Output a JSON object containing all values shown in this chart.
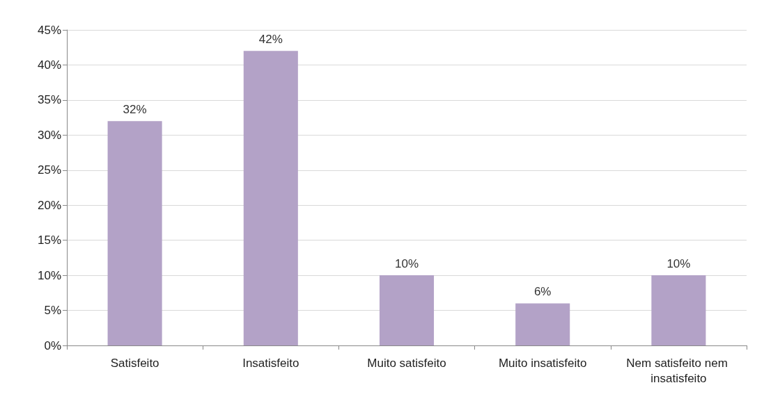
{
  "chart_data": {
    "type": "bar",
    "categories": [
      "Satisfeito",
      "Insatisfeito",
      "Muito satisfeito",
      "Muito insatisfeito",
      "Nem satisfeito nem insatisfeito"
    ],
    "values": [
      32,
      42,
      10,
      6,
      10
    ],
    "value_labels": [
      "32%",
      "42%",
      "10%",
      "6%",
      "10%"
    ],
    "color": "#b3a2c7",
    "ylim": [
      0,
      45
    ],
    "yticks": [
      {
        "value": 0,
        "label": "0%"
      },
      {
        "value": 5,
        "label": "5%"
      },
      {
        "value": 10,
        "label": "10%"
      },
      {
        "value": 15,
        "label": "15%"
      },
      {
        "value": 20,
        "label": "20%"
      },
      {
        "value": 25,
        "label": "25%"
      },
      {
        "value": 30,
        "label": "30%"
      },
      {
        "value": 35,
        "label": "35%"
      },
      {
        "value": 40,
        "label": "40%"
      },
      {
        "value": 45,
        "label": "45%"
      }
    ],
    "grid": "y"
  }
}
